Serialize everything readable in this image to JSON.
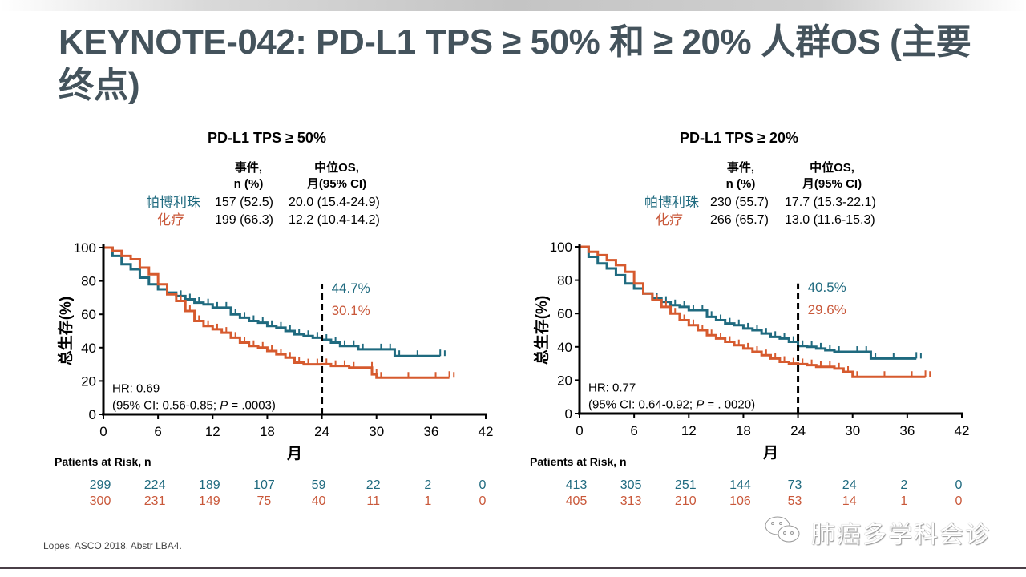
{
  "slide": {
    "title": "KEYNOTE-042: PD-L1 TPS ≥ 50% 和 ≥ 20% 人群OS (主要终点)",
    "footnote": "Lopes. ASCO 2018. Abstr LBA4.",
    "watermark": "肺癌多学科会诊",
    "watermark_icon": "wechat-icon"
  },
  "colors": {
    "pembrolizumab": "#1f6a7f",
    "chemotherapy": "#d65a2e",
    "title": "#44535c"
  },
  "table_headers": {
    "events_line1": "事件,",
    "events_line2": "n (%)",
    "median_line1": "中位OS,",
    "median_line2": "月(95% CI)"
  },
  "chart_data": [
    {
      "type": "line",
      "subtype": "kaplan-meier",
      "title": "PD-L1 TPS ≥ 50%",
      "xlabel": "月",
      "ylabel": "总生存(%)",
      "xlim": [
        0,
        42
      ],
      "ylim": [
        0,
        100
      ],
      "xticks": [
        0,
        6,
        12,
        18,
        24,
        30,
        36,
        42
      ],
      "yticks": [
        0,
        20,
        40,
        60,
        80,
        100
      ],
      "grid": false,
      "reference_line": {
        "x": 24,
        "style": "dashed"
      },
      "landmark_labels": [
        {
          "series": "帕博利珠",
          "text": "44.7%"
        },
        {
          "series": "化疗",
          "text": "30.1%"
        }
      ],
      "hr_text": "HR: 0.69",
      "ci_text_prefix": "(95% CI: 0.56-0.85; ",
      "p_label": "P",
      "p_text": " = .0003)",
      "table": [
        {
          "arm": "帕博利珠",
          "events": "157 (52.5)",
          "median": "20.0 (15.4-24.9)"
        },
        {
          "arm": "化疗",
          "events": "199 (66.3)",
          "median": "12.2 (10.4-14.2)"
        }
      ],
      "series": [
        {
          "name": "帕博利珠",
          "color": "#1f6a7f",
          "points": [
            [
              0,
              100
            ],
            [
              1,
              95
            ],
            [
              2,
              90
            ],
            [
              3,
              87
            ],
            [
              4,
              82
            ],
            [
              5,
              78
            ],
            [
              6,
              75
            ],
            [
              7,
              73
            ],
            [
              8,
              71
            ],
            [
              9,
              69
            ],
            [
              10,
              67
            ],
            [
              11,
              66
            ],
            [
              12,
              64
            ],
            [
              13,
              64
            ],
            [
              14,
              60
            ],
            [
              15,
              58
            ],
            [
              16,
              56
            ],
            [
              17,
              55
            ],
            [
              18,
              53
            ],
            [
              19,
              52
            ],
            [
              20,
              50
            ],
            [
              21,
              48
            ],
            [
              22,
              47
            ],
            [
              23,
              46
            ],
            [
              24,
              44.7
            ],
            [
              25,
              43
            ],
            [
              26,
              41
            ],
            [
              27,
              41
            ],
            [
              28,
              39
            ],
            [
              30,
              39
            ],
            [
              31,
              39
            ],
            [
              32,
              35
            ],
            [
              34,
              35
            ],
            [
              37,
              35
            ]
          ]
        },
        {
          "name": "化疗",
          "color": "#d65a2e",
          "points": [
            [
              0,
              100
            ],
            [
              1,
              98
            ],
            [
              2,
              95
            ],
            [
              3,
              93
            ],
            [
              4,
              88
            ],
            [
              5,
              84
            ],
            [
              6,
              78
            ],
            [
              7,
              72
            ],
            [
              8,
              68
            ],
            [
              9,
              62
            ],
            [
              10,
              56
            ],
            [
              11,
              53
            ],
            [
              12,
              51
            ],
            [
              13,
              49
            ],
            [
              14,
              46
            ],
            [
              15,
              43
            ],
            [
              16,
              41
            ],
            [
              17,
              40
            ],
            [
              18,
              38
            ],
            [
              19,
              36
            ],
            [
              20,
              34
            ],
            [
              21,
              31
            ],
            [
              22,
              30
            ],
            [
              23,
              30
            ],
            [
              24,
              30.1
            ],
            [
              25,
              29
            ],
            [
              26,
              29
            ],
            [
              27,
              28
            ],
            [
              29,
              28
            ],
            [
              29.5,
              24
            ],
            [
              30,
              22
            ],
            [
              33,
              22
            ],
            [
              36,
              22
            ],
            [
              38,
              22
            ]
          ]
        }
      ],
      "at_risk": {
        "label": "Patients at Risk, n",
        "times": [
          0,
          6,
          12,
          18,
          24,
          30,
          36,
          42
        ],
        "pembrolizumab": [
          "299",
          "224",
          "189",
          "107",
          "59",
          "22",
          "2",
          "0"
        ],
        "chemotherapy": [
          "300",
          "231",
          "149",
          "75",
          "40",
          "11",
          "1",
          "0"
        ]
      }
    },
    {
      "type": "line",
      "subtype": "kaplan-meier",
      "title": "PD-L1 TPS ≥ 20%",
      "xlabel": "月",
      "ylabel": "总生存(%)",
      "xlim": [
        0,
        42
      ],
      "ylim": [
        0,
        100
      ],
      "xticks": [
        0,
        6,
        12,
        18,
        24,
        30,
        36,
        42
      ],
      "yticks": [
        0,
        20,
        40,
        60,
        80,
        100
      ],
      "grid": false,
      "reference_line": {
        "x": 24,
        "style": "dashed"
      },
      "landmark_labels": [
        {
          "series": "帕博利珠",
          "text": "40.5%"
        },
        {
          "series": "化疗",
          "text": "29.6%"
        }
      ],
      "hr_text": "HR: 0.77",
      "ci_text_prefix": "(95% CI: 0.64-0.92; ",
      "p_label": "P",
      "p_text": " = . 0020)",
      "table": [
        {
          "arm": "帕博利珠",
          "events": "230 (55.7)",
          "median": "17.7 (15.3-22.1)"
        },
        {
          "arm": "化疗",
          "events": "266 (65.7)",
          "median": "13.0 (11.6-15.3)"
        }
      ],
      "series": [
        {
          "name": "帕博利珠",
          "color": "#1f6a7f",
          "points": [
            [
              0,
              100
            ],
            [
              1,
              94
            ],
            [
              2,
              90
            ],
            [
              3,
              87
            ],
            [
              4,
              83
            ],
            [
              5,
              78
            ],
            [
              6,
              75
            ],
            [
              7,
              72
            ],
            [
              8,
              69
            ],
            [
              9,
              67
            ],
            [
              10,
              65
            ],
            [
              11,
              64
            ],
            [
              12,
              62
            ],
            [
              13,
              62
            ],
            [
              14,
              58
            ],
            [
              15,
              56
            ],
            [
              16,
              54
            ],
            [
              17,
              53
            ],
            [
              18,
              51
            ],
            [
              19,
              50
            ],
            [
              20,
              48
            ],
            [
              21,
              46
            ],
            [
              22,
              45
            ],
            [
              23,
              43
            ],
            [
              24,
              40.5
            ],
            [
              25,
              40
            ],
            [
              26,
              39
            ],
            [
              27,
              38
            ],
            [
              28,
              37
            ],
            [
              30,
              37
            ],
            [
              31,
              37
            ],
            [
              32,
              33
            ],
            [
              34,
              33
            ],
            [
              37,
              33
            ]
          ]
        },
        {
          "name": "化疗",
          "color": "#d65a2e",
          "points": [
            [
              0,
              100
            ],
            [
              1,
              97
            ],
            [
              2,
              95
            ],
            [
              3,
              92
            ],
            [
              4,
              89
            ],
            [
              5,
              85
            ],
            [
              6,
              78
            ],
            [
              7,
              72
            ],
            [
              8,
              68
            ],
            [
              9,
              64
            ],
            [
              10,
              60
            ],
            [
              11,
              56
            ],
            [
              12,
              53
            ],
            [
              13,
              50
            ],
            [
              14,
              47
            ],
            [
              15,
              45
            ],
            [
              16,
              43
            ],
            [
              17,
              41
            ],
            [
              18,
              39
            ],
            [
              19,
              37
            ],
            [
              20,
              35
            ],
            [
              21,
              33
            ],
            [
              22,
              31
            ],
            [
              23,
              30
            ],
            [
              24,
              29.6
            ],
            [
              25,
              29
            ],
            [
              26,
              28
            ],
            [
              27,
              28
            ],
            [
              28,
              27
            ],
            [
              29,
              25
            ],
            [
              30,
              22
            ],
            [
              33,
              22
            ],
            [
              36,
              22
            ],
            [
              38,
              22
            ]
          ]
        }
      ],
      "at_risk": {
        "label": "Patients at Risk, n",
        "times": [
          0,
          6,
          12,
          18,
          24,
          30,
          36,
          42
        ],
        "pembrolizumab": [
          "413",
          "305",
          "251",
          "144",
          "73",
          "24",
          "2",
          "0"
        ],
        "chemotherapy": [
          "405",
          "313",
          "210",
          "106",
          "53",
          "14",
          "1",
          "0"
        ]
      }
    }
  ]
}
